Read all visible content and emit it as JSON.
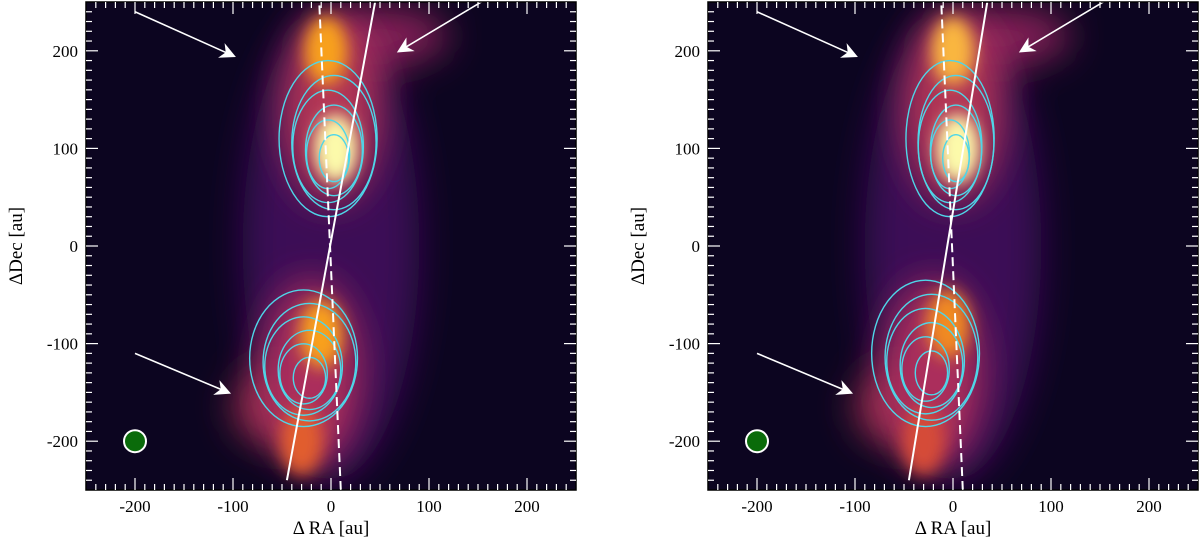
{
  "chart_data": [
    {
      "type": "heatmap",
      "xlabel": "Δ RA [au]",
      "ylabel": "ΔDec [au]",
      "xlim": [
        -250,
        250
      ],
      "ylim": [
        -250,
        250
      ],
      "xticks": [
        "-200",
        "-100",
        "0",
        "100",
        "200"
      ],
      "yticks": [
        "-200",
        "-100",
        "0",
        "100",
        "200"
      ],
      "colormap": "inferno",
      "contour_color": "#4fd6e8",
      "beam": {
        "x": -200,
        "y": -200,
        "color": "#0a6b0a"
      },
      "emission_peaks": [
        {
          "x": 5,
          "y": 100,
          "level": 1.0
        },
        {
          "x": -5,
          "y": 200,
          "level": 0.8
        },
        {
          "x": -10,
          "y": -90,
          "level": 0.8
        },
        {
          "x": -30,
          "y": -200,
          "level": 0.65
        }
      ],
      "outflow_lines": {
        "solid": [
          [
            -45,
            -240
          ],
          [
            45,
            250
          ]
        ],
        "dashed": [
          [
            10,
            -250
          ],
          [
            -12,
            250
          ]
        ]
      },
      "arrows": [
        {
          "from": [
            -200,
            240
          ],
          "to": [
            -100,
            195
          ]
        },
        {
          "from": [
            170,
            260
          ],
          "to": [
            70,
            200
          ]
        },
        {
          "from": [
            -200,
            -110
          ],
          "to": [
            -105,
            -150
          ]
        }
      ],
      "contour_lobes": [
        {
          "cx": 0,
          "cy": 110,
          "rx": 50,
          "ry": 80
        },
        {
          "cx": -25,
          "cy": -115,
          "rx": 55,
          "ry": 70
        }
      ]
    },
    {
      "type": "heatmap",
      "xlabel": "Δ RA [au]",
      "ylabel": "ΔDec [au]",
      "xlim": [
        -250,
        250
      ],
      "ylim": [
        -250,
        250
      ],
      "xticks": [
        "-200",
        "-100",
        "0",
        "100",
        "200"
      ],
      "yticks": [
        "-200",
        "-100",
        "0",
        "100",
        "200"
      ],
      "colormap": "inferno",
      "contour_color": "#4fd6e8",
      "beam": {
        "x": -200,
        "y": -200,
        "color": "#0a6b0a"
      },
      "emission_peaks": [
        {
          "x": 5,
          "y": 100,
          "level": 1.0
        },
        {
          "x": 0,
          "y": 200,
          "level": 0.85
        },
        {
          "x": -5,
          "y": -80,
          "level": 0.75
        },
        {
          "x": -30,
          "y": -200,
          "level": 0.6
        }
      ],
      "outflow_lines": {
        "solid": [
          [
            -45,
            -240
          ],
          [
            35,
            250
          ]
        ],
        "dashed": [
          [
            10,
            -250
          ],
          [
            -12,
            250
          ]
        ]
      },
      "arrows": [
        {
          "from": [
            -200,
            240
          ],
          "to": [
            -100,
            195
          ]
        },
        {
          "from": [
            170,
            260
          ],
          "to": [
            70,
            200
          ]
        },
        {
          "from": [
            -200,
            -110
          ],
          "to": [
            -105,
            -150
          ]
        }
      ],
      "contour_lobes": [
        {
          "cx": 0,
          "cy": 110,
          "rx": 45,
          "ry": 80
        },
        {
          "cx": -25,
          "cy": -110,
          "rx": 55,
          "ry": 75
        }
      ]
    }
  ]
}
